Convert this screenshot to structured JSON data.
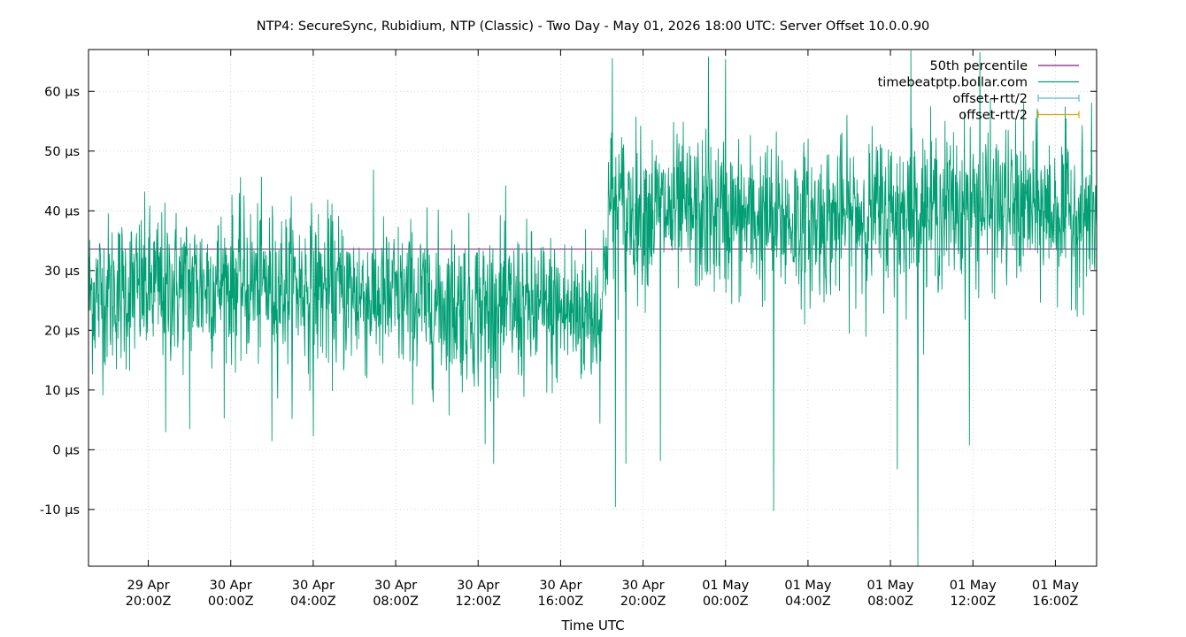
{
  "chart_data": {
    "type": "line",
    "title": "NTP4: SecureSync, Rubidium, NTP (Classic) - Two Day - May 01, 2026 18:00 UTC: Server Offset 10.0.0.90",
    "xlabel": "Time UTC",
    "ylabel": "",
    "x_start": "2026-04-29T17:06Z",
    "x_end": "2026-05-01T18:00Z",
    "ylim": [
      -19.5,
      67
    ],
    "grid": true,
    "legend_position": "top-right",
    "y_ticks": [
      {
        "value": -10,
        "label": "-10 µs"
      },
      {
        "value": 0,
        "label": "0 µs"
      },
      {
        "value": 10,
        "label": "10 µs"
      },
      {
        "value": 20,
        "label": "20 µs"
      },
      {
        "value": 30,
        "label": "30 µs"
      },
      {
        "value": 40,
        "label": "40 µs"
      },
      {
        "value": 50,
        "label": "50 µs"
      },
      {
        "value": 60,
        "label": "60 µs"
      }
    ],
    "x_ticks": [
      {
        "t": "2026-04-29T20:00Z",
        "line1": "29 Apr",
        "line2": "20:00Z"
      },
      {
        "t": "2026-04-30T00:00Z",
        "line1": "30 Apr",
        "line2": "00:00Z"
      },
      {
        "t": "2026-04-30T04:00Z",
        "line1": "30 Apr",
        "line2": "04:00Z"
      },
      {
        "t": "2026-04-30T08:00Z",
        "line1": "30 Apr",
        "line2": "08:00Z"
      },
      {
        "t": "2026-04-30T12:00Z",
        "line1": "30 Apr",
        "line2": "12:00Z"
      },
      {
        "t": "2026-04-30T16:00Z",
        "line1": "30 Apr",
        "line2": "16:00Z"
      },
      {
        "t": "2026-04-30T20:00Z",
        "line1": "30 Apr",
        "line2": "20:00Z"
      },
      {
        "t": "2026-05-01T00:00Z",
        "line1": "01 May",
        "line2": "00:00Z"
      },
      {
        "t": "2026-05-01T04:00Z",
        "line1": "01 May",
        "line2": "04:00Z"
      },
      {
        "t": "2026-05-01T08:00Z",
        "line1": "01 May",
        "line2": "08:00Z"
      },
      {
        "t": "2026-05-01T12:00Z",
        "line1": "01 May",
        "line2": "12:00Z"
      },
      {
        "t": "2026-05-01T16:00Z",
        "line1": "01 May",
        "line2": "16:00Z"
      }
    ],
    "series": [
      {
        "name": "50th percentile",
        "color": "#94168b",
        "kind": "hline",
        "value": 33.6
      },
      {
        "name": "timebeatptp.bollar.com",
        "color": "#009e73",
        "kind": "line",
        "x": [
          "2026-04-29T17:06Z",
          "2026-04-29T20:00Z",
          "2026-04-30T00:00Z",
          "2026-04-30T04:00Z",
          "2026-04-30T08:00Z",
          "2026-04-30T12:00Z",
          "2026-04-30T16:00Z",
          "2026-04-30T18:00Z",
          "2026-04-30T18:20Z",
          "2026-04-30T20:00Z",
          "2026-05-01T00:00Z",
          "2026-05-01T04:00Z",
          "2026-05-01T08:00Z",
          "2026-05-01T12:00Z",
          "2026-05-01T16:00Z",
          "2026-05-01T18:00Z"
        ],
        "y": [
          26,
          27,
          28,
          27,
          25,
          24,
          23,
          23,
          41,
          40,
          39,
          38,
          40,
          41,
          40,
          39
        ],
        "noise_sd": 6.5,
        "spikes": [
          {
            "t": "2026-04-29T20:50Z",
            "y": 3
          },
          {
            "t": "2026-04-29T22:00Z",
            "y": 3.5
          },
          {
            "t": "2026-04-30T02:00Z",
            "y": 1.5
          },
          {
            "t": "2026-04-30T04:00Z",
            "y": 2.3
          },
          {
            "t": "2026-04-30T12:20Z",
            "y": 1.0
          },
          {
            "t": "2026-04-30T18:40Z",
            "y": -9.5
          },
          {
            "t": "2026-04-30T19:10Z",
            "y": -2.3
          },
          {
            "t": "2026-04-30T20:50Z",
            "y": -1.8
          },
          {
            "t": "2026-05-01T02:20Z",
            "y": -10.2
          },
          {
            "t": "2026-05-01T08:20Z",
            "y": -3.2
          },
          {
            "t": "2026-05-01T09:20Z",
            "y": -19.5
          },
          {
            "t": "2026-05-01T11:50Z",
            "y": 0.8
          },
          {
            "t": "2026-04-30T18:30Z",
            "y": 65.5
          },
          {
            "t": "2026-04-30T23:10Z",
            "y": 65.8
          },
          {
            "t": "2026-05-01T00:00Z",
            "y": 65.3
          },
          {
            "t": "2026-05-01T12:20Z",
            "y": 66.5
          },
          {
            "t": "2026-05-01T09:00Z",
            "y": 66.8
          }
        ]
      },
      {
        "name": "offset+rtt/2",
        "color": "#56b4e9",
        "kind": "legend-only"
      },
      {
        "name": "offset-rtt/2",
        "color": "#e69f00",
        "kind": "legend-only"
      }
    ]
  }
}
